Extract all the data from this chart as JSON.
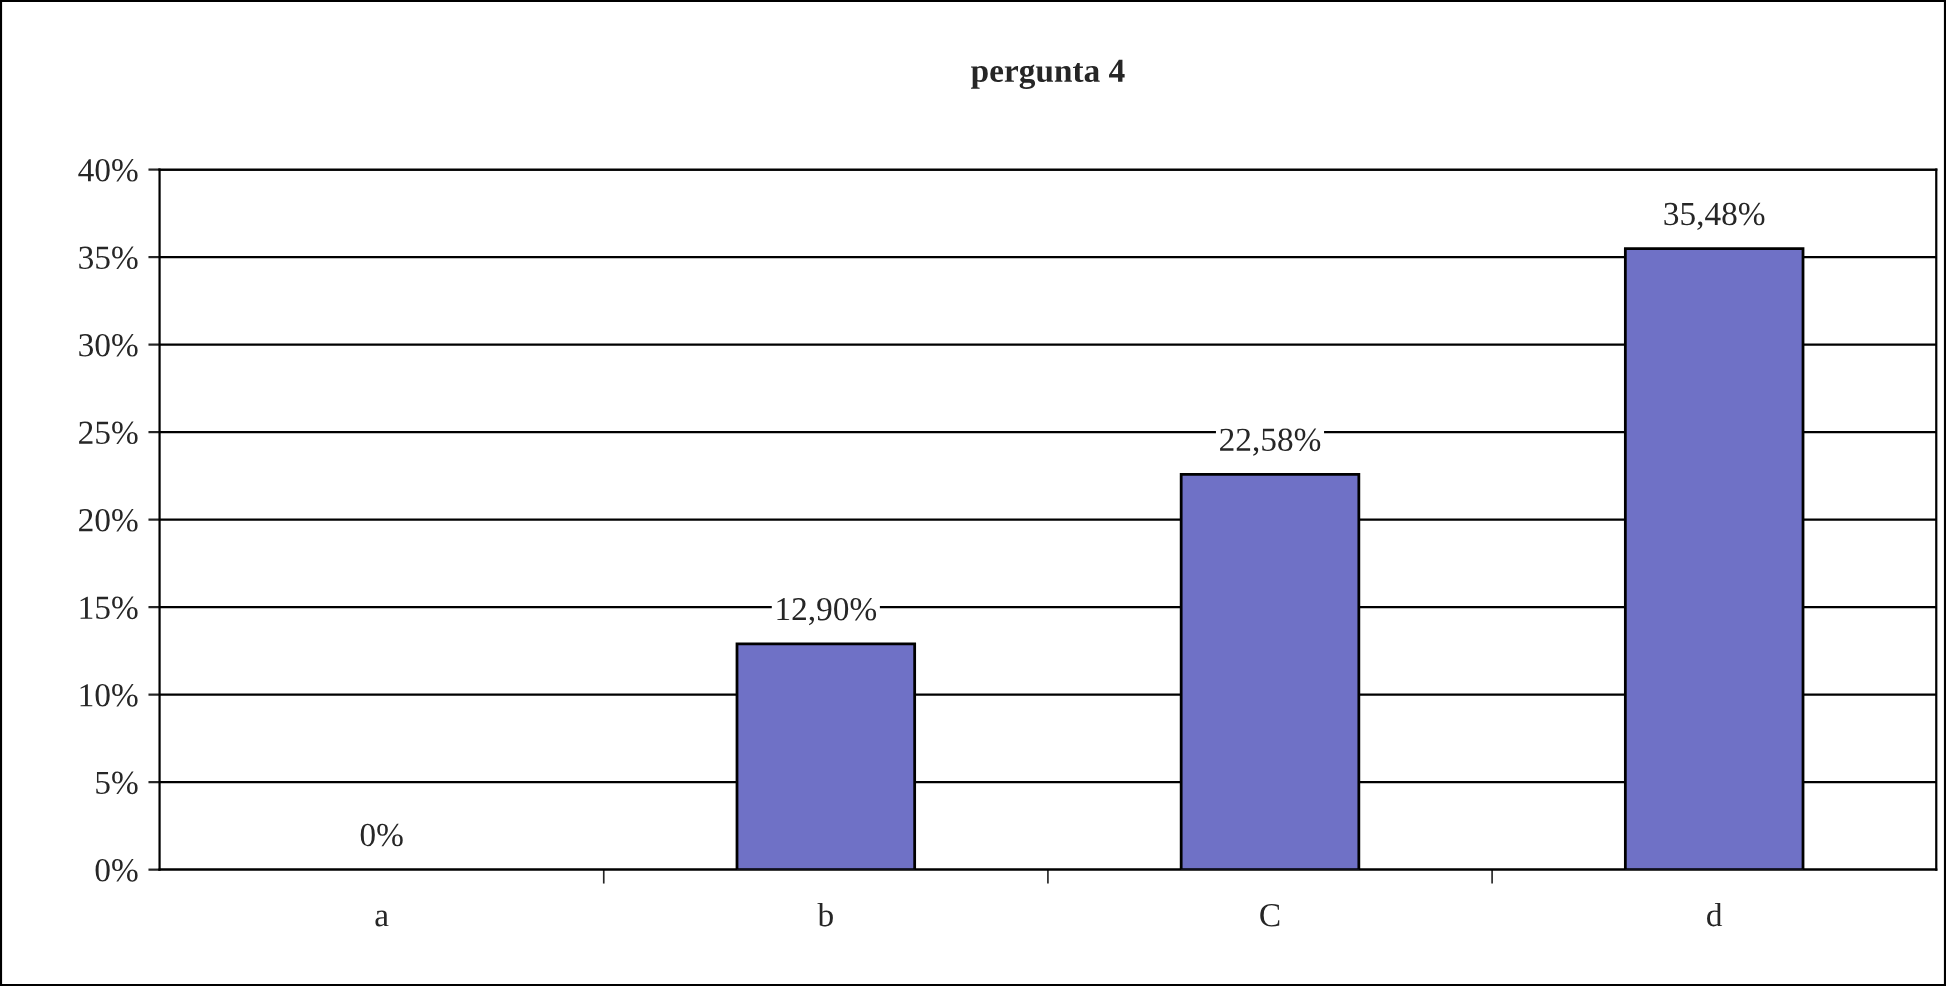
{
  "chart_data": {
    "type": "bar",
    "title": "pergunta 4",
    "categories": [
      "a",
      "b",
      "C",
      "d"
    ],
    "values": [
      0,
      12.9,
      22.58,
      35.48
    ],
    "value_labels": [
      "0%",
      "12,90%",
      "22,58%",
      "35,48%"
    ],
    "color": "#6f71c6",
    "ylim": [
      0,
      40
    ],
    "yticks": [
      {
        "value": 0,
        "label": "0%"
      },
      {
        "value": 5,
        "label": "5%"
      },
      {
        "value": 10,
        "label": "10%"
      },
      {
        "value": 15,
        "label": "15%"
      },
      {
        "value": 20,
        "label": "20%"
      },
      {
        "value": 25,
        "label": "25%"
      },
      {
        "value": 30,
        "label": "30%"
      },
      {
        "value": 35,
        "label": "35%"
      },
      {
        "value": 40,
        "label": "40%"
      }
    ],
    "grid": "y"
  }
}
